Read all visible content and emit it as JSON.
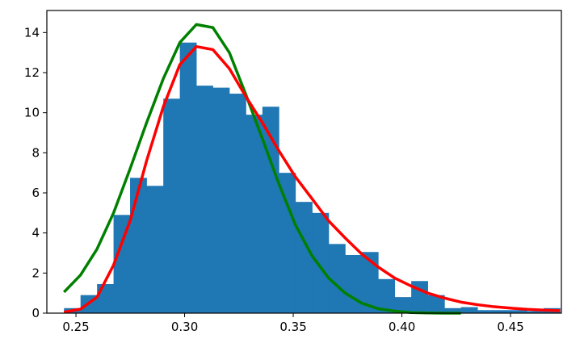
{
  "chart_data": {
    "type": "bar",
    "title": "",
    "xlabel": "",
    "ylabel": "",
    "xlim": [
      0.2366,
      0.4734
    ],
    "ylim": [
      0,
      15.1
    ],
    "xticks": [
      "0.25",
      "0.30",
      "0.35",
      "0.40",
      "0.45"
    ],
    "yticks": [
      "0",
      "2",
      "4",
      "6",
      "8",
      "10",
      "12",
      "14"
    ],
    "grid": false,
    "legend": "none",
    "histogram": {
      "color": "#1f77b4",
      "bin_edges": [
        0.2445,
        0.2521,
        0.2597,
        0.2673,
        0.2749,
        0.2825,
        0.2902,
        0.2978,
        0.3054,
        0.313,
        0.3206,
        0.3282,
        0.3358,
        0.3434,
        0.351,
        0.3587,
        0.3663,
        0.3739,
        0.3815,
        0.3891,
        0.3967,
        0.4043,
        0.4119,
        0.4196,
        0.4272,
        0.4348,
        0.4424,
        0.45,
        0.4576,
        0.4652,
        0.4728
      ],
      "values": [
        0.25,
        0.9,
        1.45,
        4.9,
        6.75,
        6.35,
        10.7,
        13.5,
        11.35,
        11.25,
        10.95,
        9.9,
        10.3,
        7.0,
        5.55,
        5.0,
        3.45,
        2.9,
        3.05,
        1.7,
        0.8,
        1.6,
        0.9,
        0.25,
        0.3,
        0.15,
        0.15,
        0.15,
        0.1,
        0.25
      ]
    },
    "series": [
      {
        "color": "#008000",
        "x": [
          0.2445,
          0.2521,
          0.2597,
          0.2673,
          0.2749,
          0.2825,
          0.2902,
          0.2978,
          0.3054,
          0.313,
          0.3206,
          0.3282,
          0.3358,
          0.3434,
          0.351,
          0.3587,
          0.3663,
          0.3739,
          0.3815,
          0.3891,
          0.3967,
          0.4043,
          0.4119,
          0.4196,
          0.4272
        ],
        "values": [
          1.05,
          1.9,
          3.2,
          5.0,
          7.2,
          9.5,
          11.7,
          13.5,
          14.4,
          14.25,
          13.0,
          10.9,
          8.7,
          6.45,
          4.4,
          2.85,
          1.75,
          1.0,
          0.5,
          0.22,
          0.1,
          0.03,
          0.01,
          0.0,
          0.0
        ]
      },
      {
        "color": "#ff0000",
        "x": [
          0.2445,
          0.2521,
          0.2597,
          0.2673,
          0.2749,
          0.2825,
          0.2902,
          0.2978,
          0.3054,
          0.313,
          0.3206,
          0.3282,
          0.3358,
          0.3434,
          0.351,
          0.3587,
          0.3663,
          0.3739,
          0.3815,
          0.3891,
          0.3967,
          0.4043,
          0.4119,
          0.4196,
          0.4272,
          0.4348,
          0.4424,
          0.45,
          0.4576,
          0.4652,
          0.4728
        ],
        "values": [
          0.05,
          0.2,
          0.8,
          2.4,
          4.6,
          7.6,
          10.3,
          12.4,
          13.3,
          13.15,
          12.2,
          10.8,
          9.5,
          8.1,
          6.8,
          5.7,
          4.6,
          3.75,
          2.95,
          2.3,
          1.75,
          1.35,
          1.0,
          0.75,
          0.55,
          0.42,
          0.32,
          0.25,
          0.19,
          0.15,
          0.12
        ]
      }
    ]
  }
}
